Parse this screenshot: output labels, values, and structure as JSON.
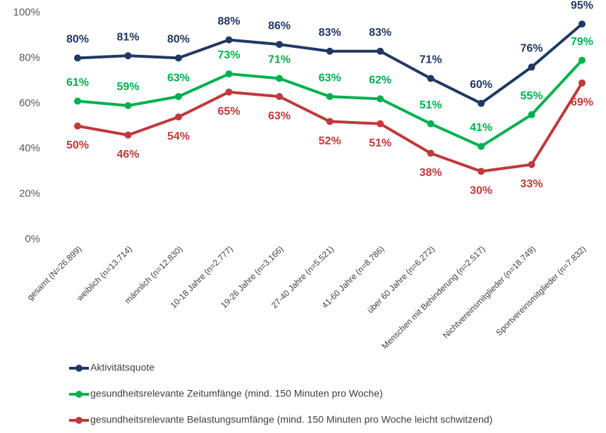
{
  "chart_data": {
    "type": "line",
    "categories": [
      "gesamt (N=26.899)",
      "weiblich (n=13.714)",
      "männlich (n=12.830)",
      "10-18 Jahre (n=2.777)",
      "19-26 Jahre (n=3.166)",
      "27-40 Jahre (n=5.521)",
      "41-60 Jahre (n=8.786)",
      "über 60 Jahre (n=6.272)",
      "Menschen mit Behinderung (n=2.517)",
      "Nichtvereinsmitglieder (n=18.749)",
      "Sportvereinsmitglieder (n=7.832)"
    ],
    "series": [
      {
        "name": "Aktivitätsquote",
        "color": "#203864",
        "values": [
          80,
          81,
          80,
          88,
          86,
          83,
          83,
          71,
          60,
          76,
          95
        ],
        "value_labels": [
          "80%",
          "81%",
          "80%",
          "88%",
          "86%",
          "83%",
          "83%",
          "71%",
          "60%",
          "76%",
          "95%"
        ]
      },
      {
        "name": "gesundheitsrelevante Zeitumfänge (mind. 150 Minuten pro Woche)",
        "color": "#00b050",
        "values": [
          61,
          59,
          63,
          73,
          71,
          63,
          62,
          51,
          41,
          55,
          79
        ],
        "value_labels": [
          "61%",
          "59%",
          "63%",
          "73%",
          "71%",
          "63%",
          "62%",
          "51%",
          "41%",
          "55%",
          "79%"
        ]
      },
      {
        "name": "gesundheitsrelevante Belastungsumfänge (mind. 150 Minuten pro Woche leicht schwitzend)",
        "color": "#c0393b",
        "values": [
          50,
          46,
          54,
          65,
          63,
          52,
          51,
          38,
          30,
          33,
          69
        ],
        "value_labels": [
          "50%",
          "46%",
          "54%",
          "65%",
          "63%",
          "52%",
          "51%",
          "38%",
          "30%",
          "33%",
          "69%"
        ]
      }
    ],
    "ylim": [
      0,
      100
    ],
    "yticks": [
      {
        "value": 0,
        "label": "0%"
      },
      {
        "value": 20,
        "label": "20%"
      },
      {
        "value": 40,
        "label": "40%"
      },
      {
        "value": 60,
        "label": "60%"
      },
      {
        "value": 80,
        "label": "80%"
      },
      {
        "value": 100,
        "label": "100%"
      }
    ],
    "grid": false,
    "legend": "bottom"
  }
}
